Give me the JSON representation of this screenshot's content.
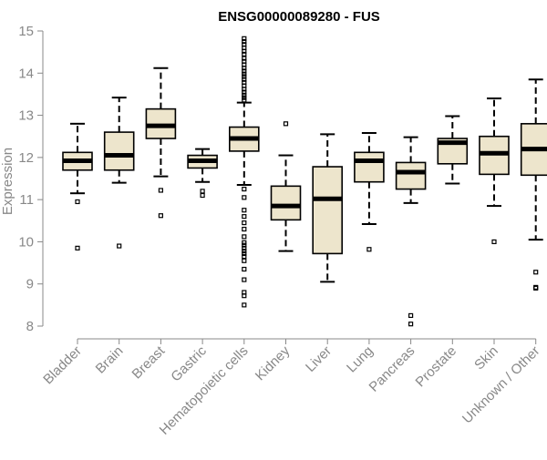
{
  "chart_data": {
    "type": "boxplot",
    "title": "ENSG00000089280 - FUS",
    "xlabel": "",
    "ylabel": "Expression",
    "ylim": [
      8,
      15
    ],
    "yticks": [
      8,
      9,
      10,
      11,
      12,
      13,
      14,
      15
    ],
    "grid": false,
    "colors": {
      "box_fill": "#ede5cc",
      "stroke": "#000000",
      "axis": "#888888",
      "tick_label": "#888888"
    },
    "categories": [
      "Bladder",
      "Brain",
      "Breast",
      "Gastric",
      "Hematopoietic cells",
      "Kidney",
      "Liver",
      "Lung",
      "Pancreas",
      "Prostate",
      "Skin",
      "Unknown / Other"
    ],
    "boxes": [
      {
        "name": "Bladder",
        "whisker_low": 11.15,
        "q1": 11.7,
        "median": 11.92,
        "q3": 12.12,
        "whisker_high": 12.8,
        "outliers": [
          10.95,
          9.85
        ]
      },
      {
        "name": "Brain",
        "whisker_low": 11.4,
        "q1": 11.7,
        "median": 12.05,
        "q3": 12.6,
        "whisker_high": 13.42,
        "outliers": [
          9.9
        ]
      },
      {
        "name": "Breast",
        "whisker_low": 11.55,
        "q1": 12.45,
        "median": 12.75,
        "q3": 13.15,
        "whisker_high": 14.12,
        "outliers": [
          11.22,
          10.62
        ]
      },
      {
        "name": "Gastric",
        "whisker_low": 11.42,
        "q1": 11.75,
        "median": 11.92,
        "q3": 12.05,
        "whisker_high": 12.2,
        "outliers": [
          11.2,
          11.1
        ]
      },
      {
        "name": "Hematopoietic cells",
        "whisker_low": 11.35,
        "q1": 12.15,
        "median": 12.45,
        "q3": 12.72,
        "whisker_high": 13.3,
        "outliers": [
          14.82,
          14.75,
          14.68,
          14.6,
          14.52,
          14.45,
          14.35,
          14.28,
          14.2,
          14.12,
          14.05,
          13.98,
          13.92,
          13.85,
          13.78,
          13.7,
          13.62,
          13.55,
          13.48,
          13.42,
          13.36,
          11.25,
          11.05,
          10.75,
          10.6,
          10.45,
          10.3,
          10.12,
          9.98,
          9.92,
          9.85,
          9.78,
          9.72,
          9.65,
          9.55,
          9.35,
          9.1,
          8.8,
          8.72,
          8.5
        ]
      },
      {
        "name": "Kidney",
        "whisker_low": 9.78,
        "q1": 10.52,
        "median": 10.85,
        "q3": 11.32,
        "whisker_high": 12.05,
        "outliers": [
          12.8
        ]
      },
      {
        "name": "Liver",
        "whisker_low": 9.05,
        "q1": 9.72,
        "median": 11.02,
        "q3": 11.78,
        "whisker_high": 12.55,
        "outliers": []
      },
      {
        "name": "Lung",
        "whisker_low": 10.42,
        "q1": 11.42,
        "median": 11.92,
        "q3": 12.12,
        "whisker_high": 12.58,
        "outliers": [
          9.82
        ]
      },
      {
        "name": "Pancreas",
        "whisker_low": 10.92,
        "q1": 11.25,
        "median": 11.65,
        "q3": 11.88,
        "whisker_high": 12.48,
        "outliers": [
          8.25,
          8.05
        ]
      },
      {
        "name": "Prostate",
        "whisker_low": 11.38,
        "q1": 11.85,
        "median": 12.35,
        "q3": 12.45,
        "whisker_high": 12.98,
        "outliers": []
      },
      {
        "name": "Skin",
        "whisker_low": 10.85,
        "q1": 11.6,
        "median": 12.1,
        "q3": 12.5,
        "whisker_high": 13.4,
        "outliers": [
          10.0
        ]
      },
      {
        "name": "Unknown / Other",
        "whisker_low": 10.05,
        "q1": 11.58,
        "median": 12.2,
        "q3": 12.8,
        "whisker_high": 13.85,
        "outliers": [
          9.28,
          8.92,
          8.9
        ]
      }
    ]
  }
}
